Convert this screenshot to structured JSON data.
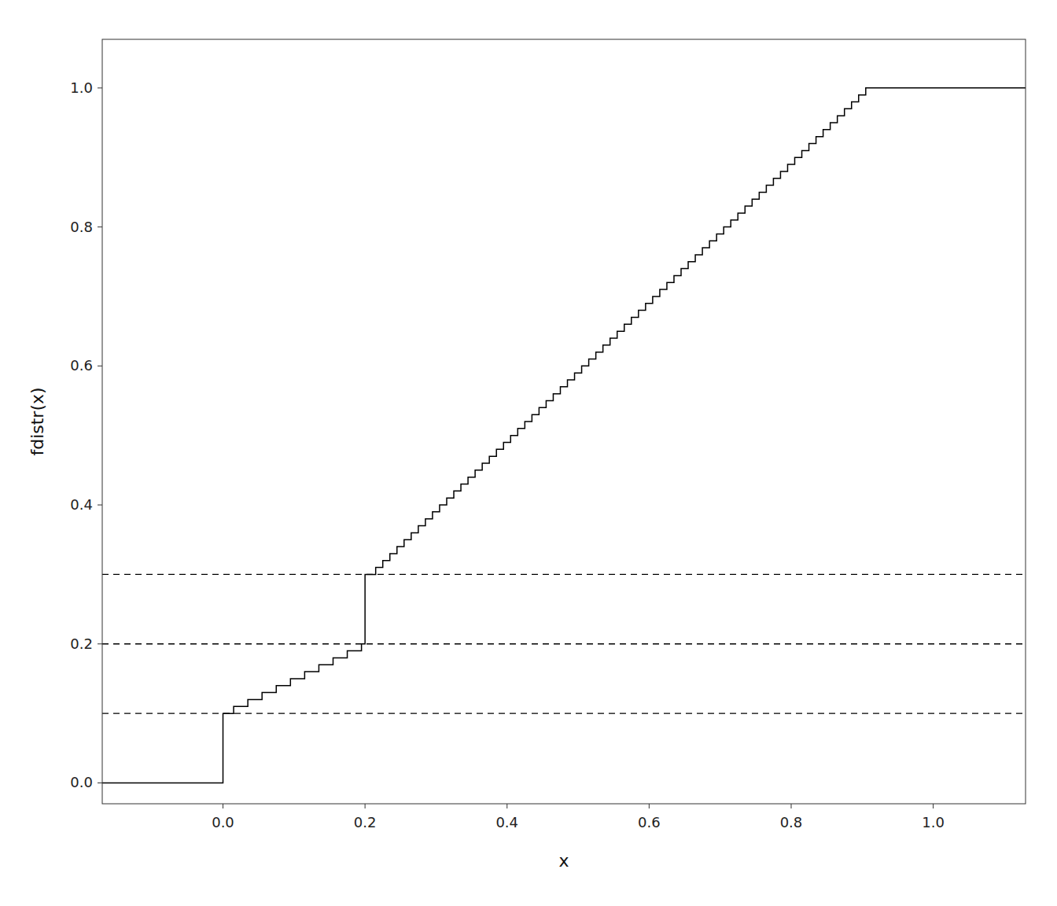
{
  "chart_data": {
    "type": "step",
    "title": "",
    "xlabel": "x",
    "ylabel": "fdistr(x)",
    "x": [
      -0.17,
      0,
      0.015,
      0.035,
      0.055,
      0.075,
      0.095,
      0.115,
      0.135,
      0.155,
      0.175,
      0.195,
      0.2,
      0.215,
      0.225,
      0.235,
      0.245,
      0.255,
      0.265,
      0.275,
      0.285,
      0.295,
      0.305,
      0.315,
      0.325,
      0.335,
      0.345,
      0.355,
      0.365,
      0.375,
      0.385,
      0.395,
      0.405,
      0.415,
      0.425,
      0.435,
      0.445,
      0.455,
      0.465,
      0.475,
      0.485,
      0.495,
      0.505,
      0.515,
      0.525,
      0.535,
      0.545,
      0.555,
      0.565,
      0.575,
      0.585,
      0.595,
      0.605,
      0.615,
      0.625,
      0.635,
      0.645,
      0.655,
      0.665,
      0.675,
      0.685,
      0.695,
      0.705,
      0.715,
      0.725,
      0.735,
      0.745,
      0.755,
      0.765,
      0.775,
      0.785,
      0.795,
      0.805,
      0.815,
      0.825,
      0.835,
      0.845,
      0.855,
      0.865,
      0.875,
      0.885,
      0.895,
      0.905,
      1.13
    ],
    "values": [
      0,
      0.1,
      0.11,
      0.12,
      0.13,
      0.14,
      0.15,
      0.16,
      0.17,
      0.18,
      0.19,
      0.2,
      0.3,
      0.31,
      0.32,
      0.33,
      0.34,
      0.35,
      0.36,
      0.37,
      0.38,
      0.39,
      0.4,
      0.41,
      0.42,
      0.43,
      0.44,
      0.45,
      0.46,
      0.47,
      0.48,
      0.49,
      0.5,
      0.51,
      0.52,
      0.53,
      0.54,
      0.55,
      0.56,
      0.57,
      0.58,
      0.59,
      0.6,
      0.61,
      0.62,
      0.63,
      0.64,
      0.65,
      0.66,
      0.67,
      0.68,
      0.69,
      0.7,
      0.71,
      0.72,
      0.73,
      0.74,
      0.75,
      0.76,
      0.77,
      0.78,
      0.79,
      0.8,
      0.81,
      0.82,
      0.83,
      0.84,
      0.85,
      0.86,
      0.87,
      0.88,
      0.89,
      0.9,
      0.91,
      0.92,
      0.93,
      0.94,
      0.95,
      0.96,
      0.97,
      0.98,
      0.99,
      1.0,
      1.0
    ],
    "color": "#000000",
    "reference_lines": {
      "values": [
        0.1,
        0.2,
        0.3
      ],
      "line_style": "dashed",
      "color": "#000000"
    },
    "xlim": [
      -0.17,
      1.13
    ],
    "ylim": [
      -0.03,
      1.07
    ],
    "xticks": [
      {
        "value": 0.0,
        "label": "0.0"
      },
      0.2,
      0.4,
      0.6,
      0.8,
      {
        "value": 1.0,
        "label": "1.0"
      }
    ],
    "yticks": [
      {
        "value": 0.0,
        "label": "0.0"
      },
      0.2,
      0.4,
      0.6,
      0.8,
      {
        "value": 1.0,
        "label": "1.0"
      }
    ],
    "grid": false
  }
}
